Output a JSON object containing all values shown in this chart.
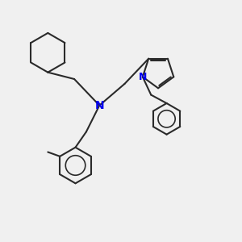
{
  "background_color": "#f0f0f0",
  "bond_color": "#2a2a2a",
  "nitrogen_color": "#0000ee",
  "line_width": 1.5,
  "figsize": [
    3.0,
    3.0
  ],
  "dpi": 100,
  "xlim": [
    0,
    10
  ],
  "ylim": [
    0,
    10
  ]
}
